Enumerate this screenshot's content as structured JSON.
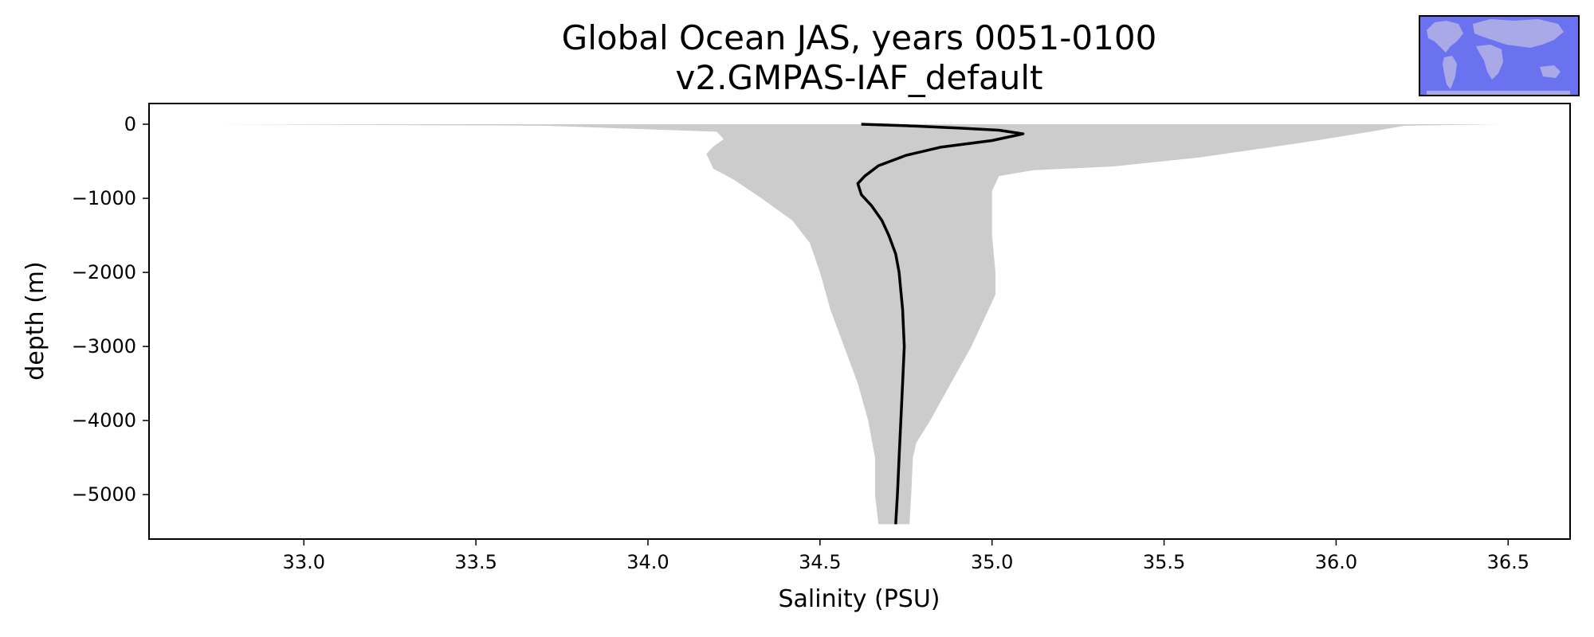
{
  "chart_data": {
    "type": "line",
    "title": "Global Ocean JAS, years 0051-0100",
    "subtitle": "v2.GMPAS-IAF_default",
    "xlabel": "Salinity (PSU)",
    "ylabel": "depth (m)",
    "xlim": [
      32.55,
      36.68
    ],
    "ylim": [
      -5600,
      280
    ],
    "xticks": [
      33.0,
      33.5,
      34.0,
      34.5,
      35.0,
      35.5,
      36.0,
      36.5
    ],
    "xtick_labels": [
      "33.0",
      "33.5",
      "34.0",
      "34.5",
      "35.0",
      "35.5",
      "36.0",
      "36.5"
    ],
    "yticks": [
      0,
      -1000,
      -2000,
      -3000,
      -4000,
      -5000
    ],
    "ytick_labels": [
      "0",
      "−1000",
      "−2000",
      "−3000",
      "−4000",
      "−5000"
    ],
    "grid": false,
    "legend": false,
    "series": [
      {
        "kind": "mean-line",
        "color": "#000000",
        "points": [
          [
            34.62,
            0
          ],
          [
            34.75,
            -20
          ],
          [
            34.9,
            -50
          ],
          [
            35.02,
            -80
          ],
          [
            35.09,
            -130
          ],
          [
            35.0,
            -220
          ],
          [
            34.85,
            -310
          ],
          [
            34.75,
            -420
          ],
          [
            34.67,
            -560
          ],
          [
            34.63,
            -700
          ],
          [
            34.61,
            -800
          ],
          [
            34.62,
            -950
          ],
          [
            34.65,
            -1100
          ],
          [
            34.68,
            -1300
          ],
          [
            34.7,
            -1500
          ],
          [
            34.72,
            -1750
          ],
          [
            34.73,
            -2000
          ],
          [
            34.74,
            -2500
          ],
          [
            34.745,
            -3000
          ],
          [
            34.74,
            -3500
          ],
          [
            34.735,
            -4000
          ],
          [
            34.73,
            -4500
          ],
          [
            34.725,
            -5000
          ],
          [
            34.72,
            -5400
          ]
        ]
      },
      {
        "kind": "min-max-range",
        "color": "#cccccc",
        "upper": [
          [
            36.48,
            0
          ],
          [
            36.2,
            -20
          ],
          [
            36.1,
            -100
          ],
          [
            35.9,
            -250
          ],
          [
            35.6,
            -450
          ],
          [
            35.35,
            -570
          ],
          [
            35.12,
            -620
          ],
          [
            35.02,
            -700
          ],
          [
            35.0,
            -900
          ],
          [
            35.0,
            -1200
          ],
          [
            35.0,
            -1500
          ],
          [
            35.01,
            -2000
          ],
          [
            35.01,
            -2300
          ],
          [
            34.98,
            -2600
          ],
          [
            34.94,
            -3000
          ],
          [
            34.88,
            -3500
          ],
          [
            34.82,
            -4000
          ],
          [
            34.78,
            -4300
          ],
          [
            34.77,
            -4500
          ],
          [
            34.765,
            -5000
          ],
          [
            34.76,
            -5400
          ]
        ],
        "lower": [
          [
            32.75,
            0
          ],
          [
            33.7,
            -20
          ],
          [
            34.2,
            -100
          ],
          [
            34.22,
            -200
          ],
          [
            34.19,
            -300
          ],
          [
            34.17,
            -400
          ],
          [
            34.19,
            -600
          ],
          [
            34.25,
            -750
          ],
          [
            34.33,
            -1000
          ],
          [
            34.42,
            -1300
          ],
          [
            34.47,
            -1600
          ],
          [
            34.5,
            -2000
          ],
          [
            34.53,
            -2500
          ],
          [
            34.57,
            -3000
          ],
          [
            34.61,
            -3500
          ],
          [
            34.64,
            -4000
          ],
          [
            34.66,
            -4500
          ],
          [
            34.66,
            -5000
          ],
          [
            34.67,
            -5400
          ]
        ]
      }
    ]
  },
  "inset_map": {
    "ocean_color": "#6a72f0",
    "land_color": "#a9a9e8",
    "border_color": "#000000"
  }
}
